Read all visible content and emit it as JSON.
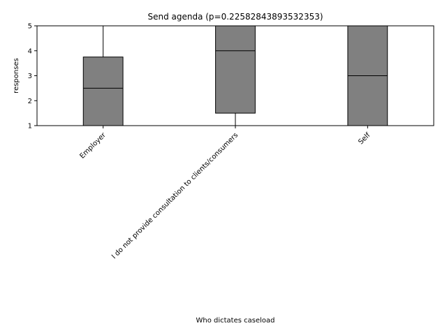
{
  "chart_data": {
    "type": "box",
    "title": "Send agenda (p=0.22582843893532353)",
    "xlabel": "Who dictates caseload",
    "ylabel": "responses",
    "ylim": [
      1,
      5
    ],
    "yticks": [
      1,
      2,
      3,
      4,
      5
    ],
    "grid": false,
    "box_color": "#808080",
    "line_color": "#000000",
    "categories": [
      "Employer",
      "I do not provide consultation to clients/consumers",
      "Self"
    ],
    "boxes": [
      {
        "category": "Employer",
        "whisker_low": 1,
        "q1": 1,
        "median": 2.5,
        "q3": 3.75,
        "whisker_high": 5
      },
      {
        "category": "I do not provide consultation to clients/consumers",
        "whisker_low": 1,
        "q1": 1.5,
        "median": 4,
        "q3": 5,
        "whisker_high": 5
      },
      {
        "category": "Self",
        "whisker_low": 1,
        "q1": 1,
        "median": 3,
        "q3": 5,
        "whisker_high": 5
      }
    ]
  }
}
